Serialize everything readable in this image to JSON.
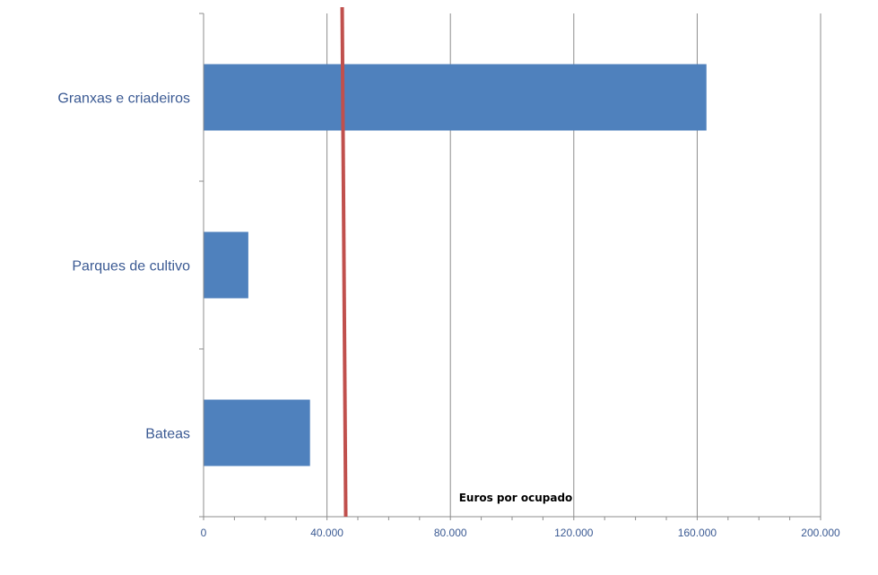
{
  "chart_data": {
    "type": "bar",
    "orientation": "horizontal",
    "categories": [
      "Granxas e criadeiros",
      "Parques de cultivo",
      "Bateas"
    ],
    "values": [
      163000,
      14500,
      34500
    ],
    "xlabel": "Euros por ocupado",
    "xlim": [
      0,
      200000
    ],
    "x_ticks": [
      0,
      40000,
      80000,
      120000,
      160000,
      200000
    ],
    "x_tick_labels": [
      "0",
      "40.000",
      "80.000",
      "120.000",
      "160.000",
      "200.000"
    ],
    "reference_line": {
      "value": 45500
    },
    "grid": "vertical-major",
    "colors": {
      "bar": "#4f81bd",
      "reference_line": "#c0504d",
      "grid": "#8c8c8c",
      "axis": "#8c8c8c",
      "label": "#3b5a93"
    }
  }
}
